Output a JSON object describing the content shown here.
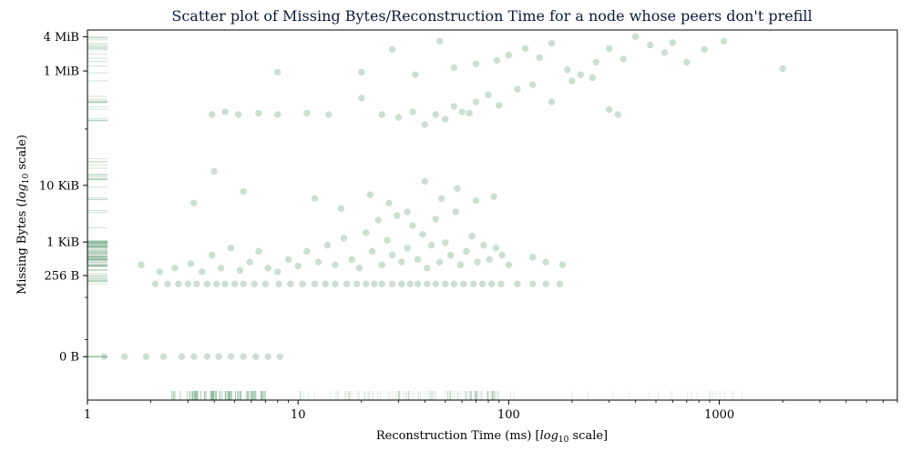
{
  "chart_data": {
    "type": "scatter",
    "title": "Scatter plot of Missing Bytes/Reconstruction Time for a node whose peers don't prefill",
    "xlabel": {
      "prefix": "Reconstruction Time (ms) [",
      "math": "log",
      "sub": "10",
      "suffix": " scale]"
    },
    "ylabel": {
      "prefix": "Missing Bytes (",
      "math": "log",
      "sub": "10",
      "suffix": " scale)"
    },
    "x_scale": "log10",
    "y_scale": "symlog",
    "xlim": [
      1,
      7000
    ],
    "ylim": [
      -48,
      5500000
    ],
    "x_ticks": [
      {
        "value": 1,
        "label": "1"
      },
      {
        "value": 10,
        "label": "10"
      },
      {
        "value": 100,
        "label": "100"
      },
      {
        "value": 1000,
        "label": "1000"
      }
    ],
    "y_ticks": [
      {
        "value": 0,
        "label": "0 B"
      },
      {
        "value": 256,
        "label": "256 B"
      },
      {
        "value": 1024,
        "label": "1 KiB"
      },
      {
        "value": 10240,
        "label": "10 KiB"
      },
      {
        "value": 1048576,
        "label": "1 MiB"
      },
      {
        "value": 4194304,
        "label": "4 MiB"
      }
    ],
    "marker_color": "#7fb08f",
    "rug_plot": true,
    "series": [
      {
        "points": [
          [
            2.1,
            180
          ],
          [
            2.4,
            180
          ],
          [
            2.7,
            180
          ],
          [
            3.0,
            180
          ],
          [
            3.3,
            180
          ],
          [
            3.7,
            180
          ],
          [
            4.1,
            180
          ],
          [
            4.5,
            180
          ],
          [
            5.0,
            180
          ],
          [
            5.5,
            180
          ],
          [
            6.2,
            180
          ],
          [
            7.0,
            180
          ],
          [
            8.1,
            180
          ],
          [
            9.2,
            180
          ],
          [
            10.5,
            180
          ],
          [
            12,
            180
          ],
          [
            13.5,
            180
          ],
          [
            15,
            180
          ],
          [
            17,
            180
          ],
          [
            19,
            180
          ],
          [
            21,
            180
          ],
          [
            23,
            180
          ],
          [
            25,
            180
          ],
          [
            28,
            180
          ],
          [
            31,
            180
          ],
          [
            34,
            180
          ],
          [
            37,
            180
          ],
          [
            41,
            180
          ],
          [
            45,
            180
          ],
          [
            50,
            180
          ],
          [
            55,
            180
          ],
          [
            61,
            180
          ],
          [
            68,
            180
          ],
          [
            75,
            180
          ],
          [
            83,
            180
          ],
          [
            92,
            180
          ],
          [
            110,
            180
          ],
          [
            130,
            180
          ],
          [
            150,
            180
          ],
          [
            175,
            180
          ],
          [
            1.8,
            400
          ],
          [
            2.2,
            300
          ],
          [
            2.6,
            350
          ],
          [
            3.1,
            420
          ],
          [
            3.5,
            300
          ],
          [
            3.9,
            600
          ],
          [
            4.3,
            350
          ],
          [
            4.8,
            800
          ],
          [
            5.3,
            320
          ],
          [
            5.9,
            450
          ],
          [
            6.5,
            700
          ],
          [
            7.2,
            350
          ],
          [
            8.0,
            300
          ],
          [
            9.0,
            500
          ],
          [
            10,
            380
          ],
          [
            11,
            700
          ],
          [
            12.5,
            450
          ],
          [
            13.8,
            900
          ],
          [
            15,
            400
          ],
          [
            16.5,
            1200
          ],
          [
            18,
            500
          ],
          [
            19.5,
            350
          ],
          [
            21,
            1500
          ],
          [
            22.5,
            700
          ],
          [
            24,
            2500
          ],
          [
            25,
            400
          ],
          [
            26.5,
            1100
          ],
          [
            28,
            600
          ],
          [
            29.5,
            3000
          ],
          [
            31,
            450
          ],
          [
            33,
            800
          ],
          [
            35,
            2000
          ],
          [
            37,
            500
          ],
          [
            39,
            1400
          ],
          [
            41,
            350
          ],
          [
            43,
            900
          ],
          [
            45,
            2600
          ],
          [
            47,
            450
          ],
          [
            50,
            1000
          ],
          [
            53,
            600
          ],
          [
            56,
            3500
          ],
          [
            59,
            400
          ],
          [
            63,
            700
          ],
          [
            67,
            1300
          ],
          [
            71,
            450
          ],
          [
            76,
            900
          ],
          [
            81,
            500
          ],
          [
            87,
            800
          ],
          [
            93,
            600
          ],
          [
            100,
            400
          ],
          [
            130,
            550
          ],
          [
            150,
            450
          ],
          [
            180,
            400
          ],
          [
            3.2,
            5000
          ],
          [
            4.0,
            18000
          ],
          [
            5.5,
            8000
          ],
          [
            12,
            6000
          ],
          [
            16,
            4000
          ],
          [
            22,
            7000
          ],
          [
            27,
            5000
          ],
          [
            33,
            3500
          ],
          [
            40,
            12000
          ],
          [
            48,
            6000
          ],
          [
            57,
            9000
          ],
          [
            70,
            5500
          ],
          [
            85,
            6500
          ],
          [
            3.9,
            180000
          ],
          [
            4.5,
            200000
          ],
          [
            5.2,
            180000
          ],
          [
            6.5,
            190000
          ],
          [
            8,
            180000
          ],
          [
            11,
            190000
          ],
          [
            14,
            180000
          ],
          [
            20,
            350000
          ],
          [
            25,
            180000
          ],
          [
            30,
            160000
          ],
          [
            35,
            200000
          ],
          [
            40,
            120000
          ],
          [
            45,
            180000
          ],
          [
            50,
            150000
          ],
          [
            55,
            250000
          ],
          [
            60,
            200000
          ],
          [
            65,
            190000
          ],
          [
            70,
            300000
          ],
          [
            80,
            400000
          ],
          [
            90,
            260000
          ],
          [
            110,
            500000
          ],
          [
            130,
            600000
          ],
          [
            160,
            300000
          ],
          [
            200,
            700000
          ],
          [
            250,
            800000
          ],
          [
            300,
            220000
          ],
          [
            330,
            180000
          ],
          [
            8,
            1000000
          ],
          [
            20,
            1000000
          ],
          [
            28,
            2500000
          ],
          [
            36,
            900000
          ],
          [
            47,
            3500000
          ],
          [
            55,
            1200000
          ],
          [
            70,
            1400000
          ],
          [
            88,
            1600000
          ],
          [
            100,
            2000000
          ],
          [
            120,
            2600000
          ],
          [
            140,
            1800000
          ],
          [
            160,
            3200000
          ],
          [
            190,
            1100000
          ],
          [
            220,
            900000
          ],
          [
            260,
            1500000
          ],
          [
            300,
            2600000
          ],
          [
            350,
            1700000
          ],
          [
            400,
            4200000
          ],
          [
            470,
            3000000
          ],
          [
            550,
            2200000
          ],
          [
            600,
            3300000
          ],
          [
            700,
            1500000
          ],
          [
            850,
            2500000
          ],
          [
            1050,
            3500000
          ],
          [
            2000,
            1150000
          ],
          [
            1.2,
            0
          ],
          [
            1.5,
            0
          ],
          [
            1.9,
            0
          ],
          [
            2.3,
            0
          ],
          [
            2.8,
            0
          ],
          [
            3.2,
            0
          ],
          [
            3.7,
            0
          ],
          [
            4.2,
            0
          ],
          [
            4.8,
            0
          ],
          [
            5.5,
            0
          ],
          [
            6.3,
            0
          ],
          [
            7.2,
            0
          ],
          [
            8.2,
            0
          ]
        ]
      }
    ]
  }
}
